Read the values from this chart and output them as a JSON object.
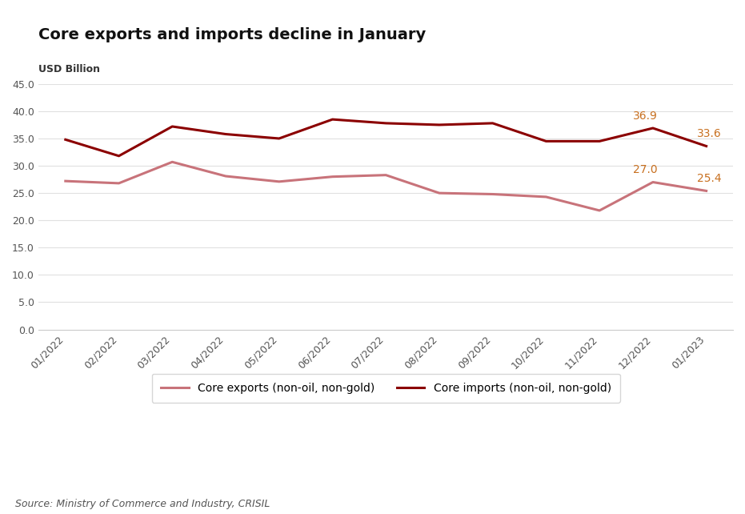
{
  "title": "Core exports and imports decline in January",
  "ylabel": "USD Billion",
  "source": "Source: Ministry of Commerce and Industry, CRISIL",
  "categories": [
    "01/2022",
    "02/2022",
    "03/2022",
    "04/2022",
    "05/2022",
    "06/2022",
    "07/2022",
    "08/2022",
    "09/2022",
    "10/2022",
    "11/2022",
    "12/2022",
    "01/2023"
  ],
  "core_exports": [
    27.2,
    26.8,
    30.7,
    28.1,
    27.1,
    28.0,
    28.3,
    25.0,
    24.8,
    24.3,
    21.8,
    27.0,
    25.4
  ],
  "core_imports": [
    34.8,
    31.8,
    37.2,
    35.8,
    35.0,
    38.5,
    37.8,
    37.5,
    37.8,
    34.5,
    34.5,
    36.9,
    33.6
  ],
  "exports_color": "#c8737a",
  "imports_color": "#8b0000",
  "annotation_color": "#c87020",
  "exports_label": "Core exports (non-oil, non-gold)",
  "imports_label": "Core imports (non-oil, non-gold)",
  "ylim": [
    0,
    45
  ],
  "yticks": [
    0.0,
    5.0,
    10.0,
    15.0,
    20.0,
    25.0,
    30.0,
    35.0,
    40.0,
    45.0
  ],
  "annotation_exports_dec": {
    "value": 27.0,
    "index": 11
  },
  "annotation_exports_jan": {
    "value": 25.4,
    "index": 12
  },
  "annotation_imports_dec": {
    "value": 36.9,
    "index": 11
  },
  "annotation_imports_jan": {
    "value": 33.6,
    "index": 12
  },
  "background_color": "#ffffff",
  "plot_bg_color": "#ffffff",
  "title_fontsize": 14,
  "ylabel_fontsize": 9,
  "tick_fontsize": 9,
  "legend_fontsize": 10,
  "annotation_fontsize": 10,
  "source_fontsize": 9
}
